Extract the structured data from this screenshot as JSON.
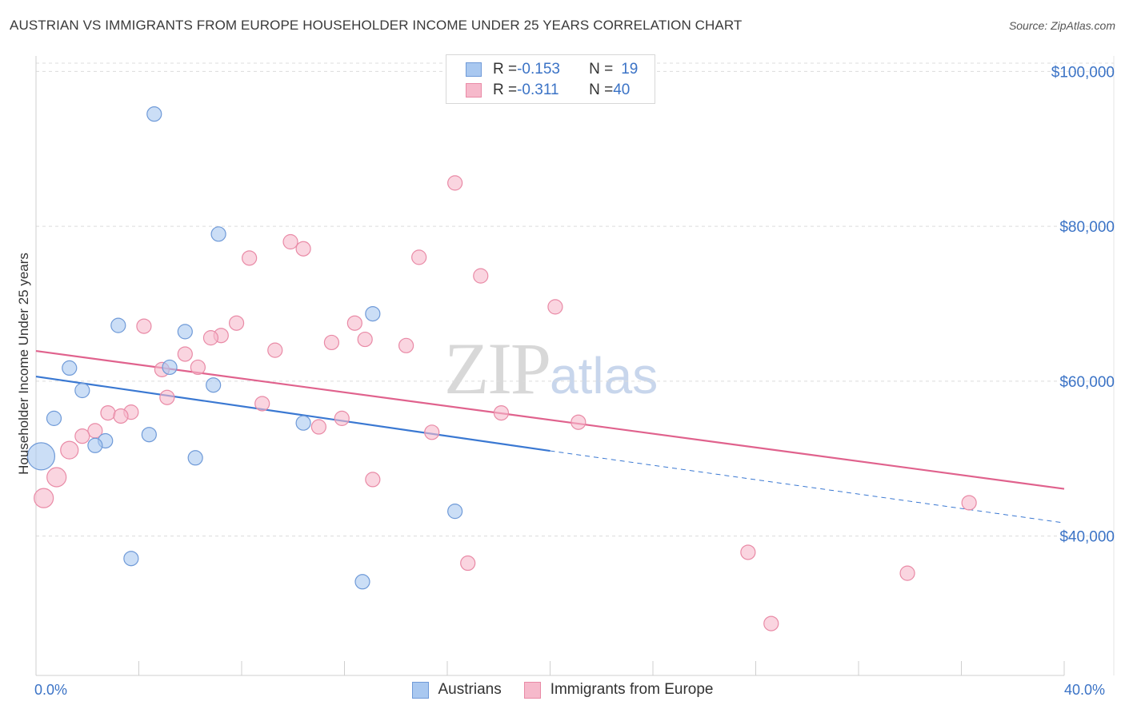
{
  "header": {
    "title": "AUSTRIAN VS IMMIGRANTS FROM EUROPE HOUSEHOLDER INCOME UNDER 25 YEARS CORRELATION CHART",
    "source": "Source: ZipAtlas.com"
  },
  "watermark": {
    "zip": "ZIP",
    "atlas": "atlas"
  },
  "legend": {
    "rows": [
      {
        "r_label": "R = ",
        "r_value": "-0.153",
        "n_label": "N = ",
        "n_value": "19",
        "color": "#a9c8f0",
        "border": "#6f9ad8"
      },
      {
        "r_label": "R = ",
        "r_value": "-0.311",
        "n_label": "N = ",
        "n_value": "40",
        "color": "#f6b9cb",
        "border": "#e98aa6"
      }
    ]
  },
  "bottom_legend": {
    "items": [
      {
        "label": "Austrians",
        "color": "#a9c8f0",
        "border": "#6f9ad8"
      },
      {
        "label": "Immigrants from Europe",
        "color": "#f6b9cb",
        "border": "#e98aa6"
      }
    ]
  },
  "chart_data": {
    "type": "scatter",
    "title": "AUSTRIAN VS IMMIGRANTS FROM EUROPE HOUSEHOLDER INCOME UNDER 25 YEARS CORRELATION CHART",
    "xlabel": "",
    "ylabel": "Householder Income Under 25 years",
    "xlim": [
      0,
      40
    ],
    "ylim": [
      22000,
      102000
    ],
    "x_tick_labels": [
      "0.0%",
      "40.0%"
    ],
    "y_ticks": [
      40000,
      60000,
      80000,
      100000
    ],
    "y_tick_labels": [
      "$40,000",
      "$60,000",
      "$80,000",
      "$100,000"
    ],
    "grid": true,
    "legend_position": "top-center",
    "series": [
      {
        "name": "Austrians",
        "color": "#a9c8f0",
        "stroke": "#6f9ad8",
        "line_color": "#3a78d2",
        "trend": {
          "x0": 0,
          "y0": 60600,
          "x1": 20,
          "y1": 51000,
          "dash_to_x": 40,
          "dash_to_y": 41700
        },
        "points": [
          {
            "x": 4.6,
            "y": 94500,
            "s": 9
          },
          {
            "x": 7.1,
            "y": 79000,
            "s": 9
          },
          {
            "x": 3.2,
            "y": 67200,
            "s": 9
          },
          {
            "x": 5.8,
            "y": 66400,
            "s": 9
          },
          {
            "x": 13.1,
            "y": 68700,
            "s": 9
          },
          {
            "x": 1.3,
            "y": 61700,
            "s": 9
          },
          {
            "x": 5.2,
            "y": 61800,
            "s": 9
          },
          {
            "x": 6.9,
            "y": 59500,
            "s": 9
          },
          {
            "x": 1.8,
            "y": 58800,
            "s": 9
          },
          {
            "x": 0.7,
            "y": 55200,
            "s": 9
          },
          {
            "x": 10.4,
            "y": 54600,
            "s": 9
          },
          {
            "x": 4.4,
            "y": 53100,
            "s": 9
          },
          {
            "x": 2.7,
            "y": 52300,
            "s": 9
          },
          {
            "x": 2.3,
            "y": 51700,
            "s": 9
          },
          {
            "x": 0.2,
            "y": 50300,
            "s": 17
          },
          {
            "x": 6.2,
            "y": 50100,
            "s": 9
          },
          {
            "x": 16.3,
            "y": 43200,
            "s": 9
          },
          {
            "x": 3.7,
            "y": 37100,
            "s": 9
          },
          {
            "x": 12.7,
            "y": 34100,
            "s": 9
          }
        ]
      },
      {
        "name": "Immigrants from Europe",
        "color": "#f6b9cb",
        "stroke": "#e98aa6",
        "line_color": "#e0628d",
        "trend": {
          "x0": 0,
          "y0": 63900,
          "x1": 40,
          "y1": 46100
        },
        "points": [
          {
            "x": 16.3,
            "y": 85600,
            "s": 9
          },
          {
            "x": 9.9,
            "y": 78000,
            "s": 9
          },
          {
            "x": 10.4,
            "y": 77100,
            "s": 9
          },
          {
            "x": 8.3,
            "y": 75900,
            "s": 9
          },
          {
            "x": 14.9,
            "y": 76000,
            "s": 9
          },
          {
            "x": 17.3,
            "y": 73600,
            "s": 9
          },
          {
            "x": 20.2,
            "y": 69600,
            "s": 9
          },
          {
            "x": 7.8,
            "y": 67500,
            "s": 9
          },
          {
            "x": 12.4,
            "y": 67500,
            "s": 9
          },
          {
            "x": 4.2,
            "y": 67100,
            "s": 9
          },
          {
            "x": 7.2,
            "y": 65900,
            "s": 9
          },
          {
            "x": 6.8,
            "y": 65600,
            "s": 9
          },
          {
            "x": 12.8,
            "y": 65400,
            "s": 9
          },
          {
            "x": 11.5,
            "y": 65000,
            "s": 9
          },
          {
            "x": 14.4,
            "y": 64600,
            "s": 9
          },
          {
            "x": 9.3,
            "y": 64000,
            "s": 9
          },
          {
            "x": 5.8,
            "y": 63500,
            "s": 9
          },
          {
            "x": 6.3,
            "y": 61800,
            "s": 9
          },
          {
            "x": 4.9,
            "y": 61500,
            "s": 9
          },
          {
            "x": 5.1,
            "y": 57900,
            "s": 9
          },
          {
            "x": 8.8,
            "y": 57100,
            "s": 9
          },
          {
            "x": 3.7,
            "y": 56000,
            "s": 9
          },
          {
            "x": 2.8,
            "y": 55900,
            "s": 9
          },
          {
            "x": 18.1,
            "y": 55900,
            "s": 9
          },
          {
            "x": 3.3,
            "y": 55500,
            "s": 9
          },
          {
            "x": 11.9,
            "y": 55200,
            "s": 9
          },
          {
            "x": 21.1,
            "y": 54700,
            "s": 9
          },
          {
            "x": 11.0,
            "y": 54100,
            "s": 9
          },
          {
            "x": 2.3,
            "y": 53600,
            "s": 9
          },
          {
            "x": 15.4,
            "y": 53400,
            "s": 9
          },
          {
            "x": 1.8,
            "y": 52900,
            "s": 9
          },
          {
            "x": 1.3,
            "y": 51100,
            "s": 11
          },
          {
            "x": 0.8,
            "y": 47600,
            "s": 12
          },
          {
            "x": 13.1,
            "y": 47300,
            "s": 9
          },
          {
            "x": 0.3,
            "y": 44900,
            "s": 12
          },
          {
            "x": 36.3,
            "y": 44300,
            "s": 9
          },
          {
            "x": 27.7,
            "y": 37900,
            "s": 9
          },
          {
            "x": 16.8,
            "y": 36500,
            "s": 9
          },
          {
            "x": 33.9,
            "y": 35200,
            "s": 9
          },
          {
            "x": 28.6,
            "y": 28700,
            "s": 9
          }
        ]
      }
    ]
  }
}
